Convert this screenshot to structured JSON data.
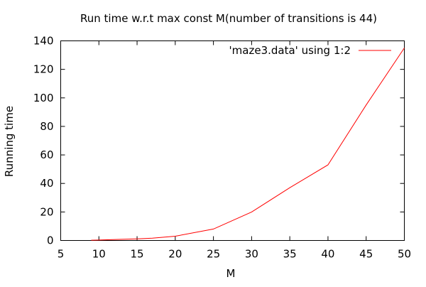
{
  "chart_data": {
    "type": "line",
    "title": "Run time w.r.t max const M(number of transitions is 44)",
    "xlabel": "M",
    "ylabel": "Running time",
    "xlim": [
      5,
      50
    ],
    "ylim": [
      0,
      140
    ],
    "xticks": [
      5,
      10,
      15,
      20,
      25,
      30,
      35,
      40,
      45,
      50
    ],
    "yticks": [
      0,
      20,
      40,
      60,
      80,
      100,
      120,
      140
    ],
    "grid": false,
    "legend_position": "top-right",
    "series": [
      {
        "name": "'maze3.data' using 1:2",
        "color": "#ff0000",
        "x": [
          9,
          10,
          13,
          15,
          17,
          20,
          25,
          30,
          35,
          40,
          45,
          50
        ],
        "y": [
          0.2,
          0.3,
          0.8,
          1.1,
          1.6,
          3,
          8,
          20,
          37,
          53,
          95,
          135
        ]
      }
    ]
  }
}
